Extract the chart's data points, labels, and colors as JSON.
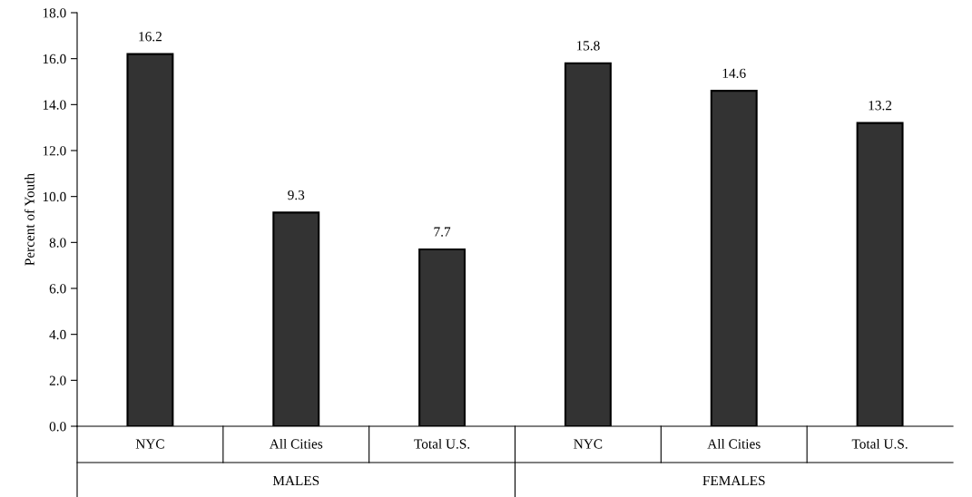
{
  "chart_data": {
    "type": "bar",
    "ylabel": "Percent of Youth",
    "categories": [
      "NYC",
      "All Cities",
      "Total U.S.",
      "NYC",
      "All Cities",
      "Total U.S."
    ],
    "values": [
      16.2,
      9.3,
      7.7,
      15.8,
      14.6,
      13.2
    ],
    "color": "#333333",
    "ylim": [
      0,
      18
    ],
    "yticks": [
      {
        "value": 0,
        "label": "0.0"
      },
      {
        "value": 2,
        "label": "2.0"
      },
      {
        "value": 4,
        "label": "4.0"
      },
      {
        "value": 6,
        "label": "6.0"
      },
      {
        "value": 8,
        "label": "8.0"
      },
      {
        "value": 10,
        "label": "10.0"
      },
      {
        "value": 12,
        "label": "12.0"
      },
      {
        "value": 14,
        "label": "14.0"
      },
      {
        "value": 16,
        "label": "16.0"
      },
      {
        "value": 18,
        "label": "18.0"
      }
    ],
    "data_labels": true,
    "grid": false,
    "legend": false,
    "annotations": [
      "MALES",
      "FEMALES"
    ]
  }
}
